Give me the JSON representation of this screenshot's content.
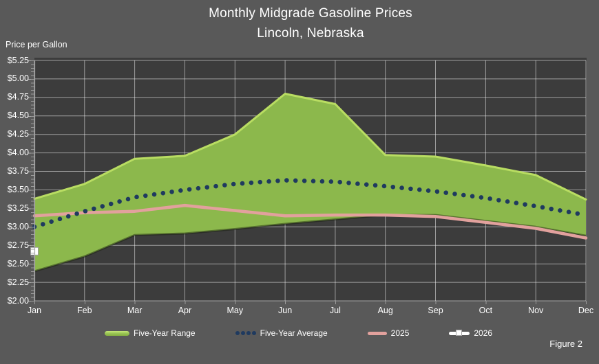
{
  "header": {
    "title": "Monthly Midgrade Gasoline Prices",
    "subtitle": "Lincoln, Nebraska"
  },
  "figure_label": "Figure 2",
  "colors": {
    "outer_background": "#595959",
    "plot_background": "#3c3c3c",
    "gridline": "rgba(255,255,255,0.5)",
    "axis_text": "#ffffff",
    "range_green": "#8cb84c",
    "range_green_highlight": "#b9dd62",
    "average_navy": "#1f3a5f",
    "line_2025_pink": "#e2a19d",
    "marker_2026_white": "#ffffff"
  },
  "chart_data": {
    "type": "area",
    "title": "Monthly Midgrade Gasoline Prices",
    "subtitle": "Lincoln, Nebraska",
    "ylabel": "Price per Gallon",
    "xlabel": "",
    "ylim": [
      2.0,
      5.25
    ],
    "ytick_step": 0.25,
    "grid": true,
    "legend_position": "bottom",
    "y_tick_labels": [
      "$5.25",
      "$5.00",
      "$4.75",
      "$4.50",
      "$4.25",
      "$4.00",
      "$3.75",
      "$3.50",
      "$3.25",
      "$3.00",
      "$2.75",
      "$2.50",
      "$2.25",
      "$2.00"
    ],
    "categories": [
      "Jan",
      "Feb",
      "Mar",
      "Apr",
      "May",
      "Jun",
      "Jul",
      "Aug",
      "Sep",
      "Oct",
      "Nov",
      "Dec"
    ],
    "series": [
      {
        "name": "Five-Year Range",
        "type": "band",
        "color": "#8cb84c",
        "edge_color": "#b9dd62",
        "low": [
          2.4,
          2.6,
          2.89,
          2.91,
          2.97,
          3.04,
          3.1,
          3.16,
          3.16,
          3.08,
          3.0,
          2.88
        ],
        "high": [
          3.38,
          3.58,
          3.92,
          3.96,
          4.25,
          4.8,
          4.66,
          3.97,
          3.95,
          3.83,
          3.7,
          3.37
        ]
      },
      {
        "name": "Five-Year Average",
        "type": "dotted-line",
        "color": "#1f3a5f",
        "values": [
          3.0,
          3.21,
          3.4,
          3.5,
          3.58,
          3.63,
          3.61,
          3.55,
          3.48,
          3.39,
          3.28,
          3.16
        ]
      },
      {
        "name": "2025",
        "type": "line",
        "color": "#e2a19d",
        "values": [
          3.15,
          3.19,
          3.21,
          3.29,
          3.22,
          3.15,
          3.16,
          3.16,
          3.14,
          3.06,
          2.98,
          2.85
        ]
      },
      {
        "name": "2026",
        "type": "square-marker",
        "color": "#ffffff",
        "values": [
          2.67,
          null,
          null,
          null,
          null,
          null,
          null,
          null,
          null,
          null,
          null,
          null
        ]
      }
    ]
  },
  "legend": {
    "items": [
      {
        "label": "Five-Year Range",
        "marker": "band"
      },
      {
        "label": "Five-Year Average",
        "marker": "dots"
      },
      {
        "label": "2025",
        "marker": "line"
      },
      {
        "label": "2026",
        "marker": "square-line"
      }
    ]
  }
}
